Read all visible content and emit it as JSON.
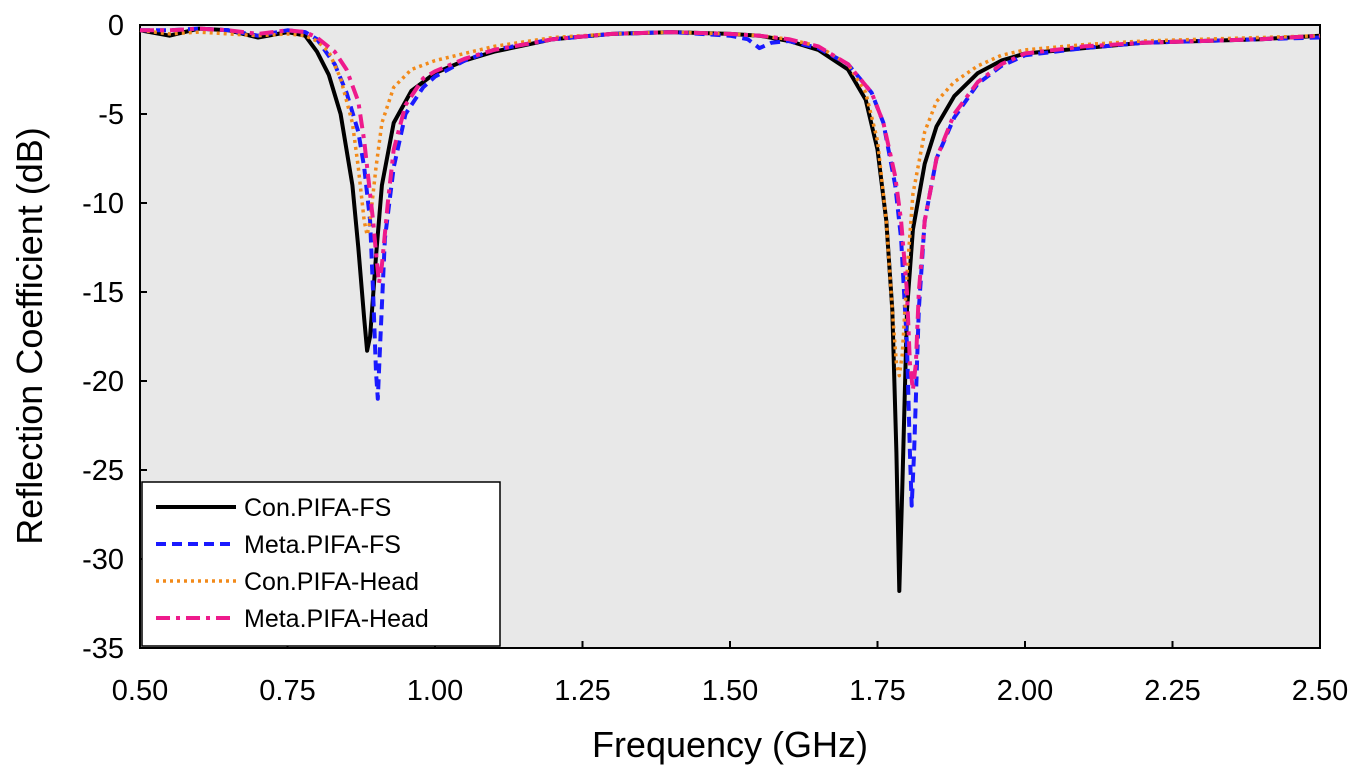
{
  "chart_data": {
    "type": "line",
    "title": "",
    "xlabel": "Frequency (GHz)",
    "ylabel": "Reflection Coefficient (dB)",
    "xlim": [
      0.5,
      2.5
    ],
    "ylim": [
      -35,
      0
    ],
    "xticks": [
      "0.50",
      "0.75",
      "1.00",
      "1.25",
      "1.50",
      "1.75",
      "2.00",
      "2.25",
      "2.50"
    ],
    "yticks": [
      "0",
      "-5",
      "-10",
      "-15",
      "-20",
      "-25",
      "-30",
      "-35"
    ],
    "grid": false,
    "legend_position": "bottom-left",
    "series": [
      {
        "name": "Con.PIFA-FS",
        "color": "#000000",
        "style": "solid",
        "points": [
          [
            0.5,
            -0.3
          ],
          [
            0.55,
            -0.6
          ],
          [
            0.6,
            -0.2
          ],
          [
            0.65,
            -0.3
          ],
          [
            0.7,
            -0.7
          ],
          [
            0.75,
            -0.4
          ],
          [
            0.78,
            -0.6
          ],
          [
            0.8,
            -1.5
          ],
          [
            0.82,
            -2.8
          ],
          [
            0.84,
            -5.0
          ],
          [
            0.86,
            -9.0
          ],
          [
            0.87,
            -12.5
          ],
          [
            0.88,
            -16.5
          ],
          [
            0.885,
            -18.3
          ],
          [
            0.89,
            -17.5
          ],
          [
            0.9,
            -13.0
          ],
          [
            0.91,
            -9.0
          ],
          [
            0.93,
            -5.5
          ],
          [
            0.96,
            -3.7
          ],
          [
            1.0,
            -2.7
          ],
          [
            1.05,
            -2.0
          ],
          [
            1.1,
            -1.5
          ],
          [
            1.2,
            -0.8
          ],
          [
            1.3,
            -0.5
          ],
          [
            1.4,
            -0.4
          ],
          [
            1.5,
            -0.5
          ],
          [
            1.55,
            -0.6
          ],
          [
            1.6,
            -0.9
          ],
          [
            1.65,
            -1.4
          ],
          [
            1.7,
            -2.5
          ],
          [
            1.73,
            -4.2
          ],
          [
            1.75,
            -7.0
          ],
          [
            1.765,
            -11.0
          ],
          [
            1.775,
            -16.0
          ],
          [
            1.782,
            -24.0
          ],
          [
            1.787,
            -31.8
          ],
          [
            1.792,
            -26.0
          ],
          [
            1.8,
            -16.0
          ],
          [
            1.81,
            -11.5
          ],
          [
            1.83,
            -7.8
          ],
          [
            1.85,
            -5.7
          ],
          [
            1.88,
            -4.0
          ],
          [
            1.92,
            -2.7
          ],
          [
            1.96,
            -2.0
          ],
          [
            2.0,
            -1.6
          ],
          [
            2.1,
            -1.3
          ],
          [
            2.2,
            -1.0
          ],
          [
            2.3,
            -0.9
          ],
          [
            2.4,
            -0.8
          ],
          [
            2.5,
            -0.6
          ]
        ]
      },
      {
        "name": "Meta.PIFA-FS",
        "color": "#1a1aff",
        "style": "dashed",
        "points": [
          [
            0.5,
            -0.3
          ],
          [
            0.55,
            -0.3
          ],
          [
            0.6,
            -0.2
          ],
          [
            0.65,
            -0.3
          ],
          [
            0.7,
            -0.6
          ],
          [
            0.75,
            -0.3
          ],
          [
            0.78,
            -0.4
          ],
          [
            0.8,
            -0.8
          ],
          [
            0.83,
            -2.2
          ],
          [
            0.85,
            -3.8
          ],
          [
            0.87,
            -6.0
          ],
          [
            0.88,
            -8.0
          ],
          [
            0.89,
            -11.0
          ],
          [
            0.895,
            -15.0
          ],
          [
            0.9,
            -19.5
          ],
          [
            0.903,
            -21.0
          ],
          [
            0.907,
            -18.0
          ],
          [
            0.915,
            -12.0
          ],
          [
            0.93,
            -8.0
          ],
          [
            0.95,
            -5.0
          ],
          [
            0.98,
            -3.5
          ],
          [
            1.0,
            -2.9
          ],
          [
            1.05,
            -2.0
          ],
          [
            1.1,
            -1.4
          ],
          [
            1.2,
            -0.8
          ],
          [
            1.3,
            -0.5
          ],
          [
            1.4,
            -0.4
          ],
          [
            1.5,
            -0.6
          ],
          [
            1.53,
            -0.8
          ],
          [
            1.55,
            -1.3
          ],
          [
            1.57,
            -1.0
          ],
          [
            1.6,
            -0.9
          ],
          [
            1.65,
            -1.3
          ],
          [
            1.7,
            -2.2
          ],
          [
            1.74,
            -3.8
          ],
          [
            1.76,
            -5.5
          ],
          [
            1.78,
            -9.0
          ],
          [
            1.79,
            -12.0
          ],
          [
            1.8,
            -18.0
          ],
          [
            1.805,
            -24.0
          ],
          [
            1.808,
            -27.0
          ],
          [
            1.812,
            -24.0
          ],
          [
            1.82,
            -16.0
          ],
          [
            1.83,
            -11.0
          ],
          [
            1.85,
            -7.5
          ],
          [
            1.88,
            -5.2
          ],
          [
            1.92,
            -3.3
          ],
          [
            1.96,
            -2.3
          ],
          [
            2.0,
            -1.7
          ],
          [
            2.1,
            -1.3
          ],
          [
            2.2,
            -1.0
          ],
          [
            2.3,
            -0.9
          ],
          [
            2.4,
            -0.8
          ],
          [
            2.5,
            -0.7
          ]
        ]
      },
      {
        "name": "Con.PIFA-Head",
        "color": "#f28a1a",
        "style": "dotted",
        "points": [
          [
            0.5,
            -0.3
          ],
          [
            0.55,
            -0.5
          ],
          [
            0.6,
            -0.4
          ],
          [
            0.65,
            -0.5
          ],
          [
            0.7,
            -0.6
          ],
          [
            0.75,
            -0.5
          ],
          [
            0.78,
            -0.6
          ],
          [
            0.8,
            -0.9
          ],
          [
            0.82,
            -1.5
          ],
          [
            0.84,
            -3.0
          ],
          [
            0.86,
            -5.5
          ],
          [
            0.87,
            -8.0
          ],
          [
            0.88,
            -11.0
          ],
          [
            0.885,
            -11.8
          ],
          [
            0.89,
            -11.0
          ],
          [
            0.9,
            -8.0
          ],
          [
            0.91,
            -5.5
          ],
          [
            0.93,
            -3.5
          ],
          [
            0.96,
            -2.5
          ],
          [
            1.0,
            -2.0
          ],
          [
            1.05,
            -1.6
          ],
          [
            1.1,
            -1.2
          ],
          [
            1.2,
            -0.7
          ],
          [
            1.3,
            -0.5
          ],
          [
            1.4,
            -0.4
          ],
          [
            1.5,
            -0.5
          ],
          [
            1.55,
            -0.6
          ],
          [
            1.6,
            -0.8
          ],
          [
            1.65,
            -1.2
          ],
          [
            1.7,
            -2.2
          ],
          [
            1.73,
            -3.8
          ],
          [
            1.75,
            -6.5
          ],
          [
            1.765,
            -11.0
          ],
          [
            1.775,
            -16.0
          ],
          [
            1.782,
            -19.0
          ],
          [
            1.787,
            -19.7
          ],
          [
            1.792,
            -18.5
          ],
          [
            1.8,
            -14.0
          ],
          [
            1.81,
            -9.5
          ],
          [
            1.83,
            -6.0
          ],
          [
            1.85,
            -4.3
          ],
          [
            1.88,
            -3.2
          ],
          [
            1.92,
            -2.3
          ],
          [
            1.96,
            -1.7
          ],
          [
            2.0,
            -1.4
          ],
          [
            2.1,
            -1.1
          ],
          [
            2.2,
            -0.9
          ],
          [
            2.3,
            -0.8
          ],
          [
            2.4,
            -0.7
          ],
          [
            2.5,
            -0.6
          ]
        ]
      },
      {
        "name": "Meta.PIFA-Head",
        "color": "#ee1a8c",
        "style": "dashdot",
        "points": [
          [
            0.5,
            -0.3
          ],
          [
            0.55,
            -0.3
          ],
          [
            0.6,
            -0.2
          ],
          [
            0.65,
            -0.3
          ],
          [
            0.7,
            -0.5
          ],
          [
            0.75,
            -0.3
          ],
          [
            0.78,
            -0.4
          ],
          [
            0.8,
            -0.7
          ],
          [
            0.83,
            -1.5
          ],
          [
            0.85,
            -2.5
          ],
          [
            0.87,
            -4.3
          ],
          [
            0.88,
            -6.5
          ],
          [
            0.89,
            -9.5
          ],
          [
            0.895,
            -11.0
          ],
          [
            0.9,
            -12.8
          ],
          [
            0.905,
            -14.5
          ],
          [
            0.91,
            -13.5
          ],
          [
            0.92,
            -10.0
          ],
          [
            0.93,
            -7.0
          ],
          [
            0.95,
            -4.5
          ],
          [
            0.98,
            -3.0
          ],
          [
            1.0,
            -2.6
          ],
          [
            1.05,
            -1.9
          ],
          [
            1.1,
            -1.4
          ],
          [
            1.2,
            -0.8
          ],
          [
            1.3,
            -0.5
          ],
          [
            1.4,
            -0.4
          ],
          [
            1.5,
            -0.5
          ],
          [
            1.55,
            -0.6
          ],
          [
            1.6,
            -0.8
          ],
          [
            1.65,
            -1.2
          ],
          [
            1.7,
            -2.2
          ],
          [
            1.74,
            -3.8
          ],
          [
            1.76,
            -5.5
          ],
          [
            1.78,
            -8.5
          ],
          [
            1.79,
            -11.0
          ],
          [
            1.8,
            -15.0
          ],
          [
            1.805,
            -19.0
          ],
          [
            1.81,
            -20.5
          ],
          [
            1.815,
            -19.0
          ],
          [
            1.82,
            -15.0
          ],
          [
            1.83,
            -11.0
          ],
          [
            1.85,
            -7.5
          ],
          [
            1.88,
            -5.0
          ],
          [
            1.92,
            -3.2
          ],
          [
            1.96,
            -2.2
          ],
          [
            2.0,
            -1.6
          ],
          [
            2.1,
            -1.2
          ],
          [
            2.2,
            -1.0
          ],
          [
            2.3,
            -0.9
          ],
          [
            2.4,
            -0.8
          ],
          [
            2.5,
            -0.6
          ]
        ]
      }
    ]
  }
}
